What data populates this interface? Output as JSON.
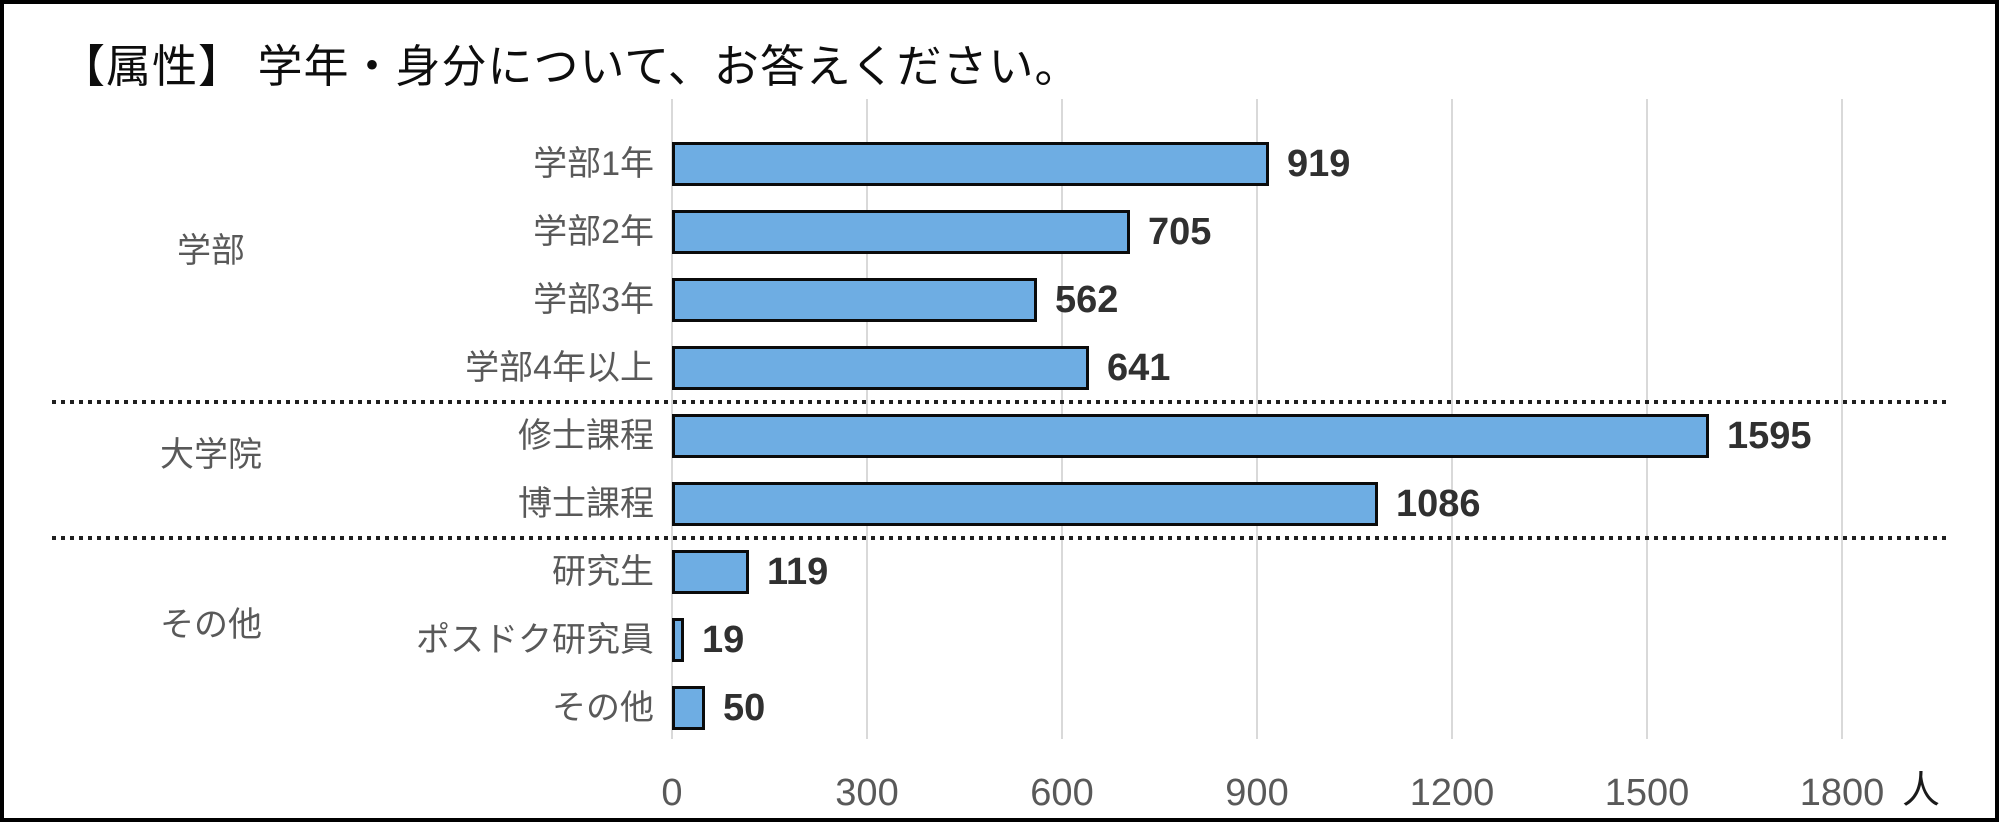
{
  "title": "【属性】 学年・身分について、お答えください。",
  "chart_data": {
    "type": "bar",
    "orientation": "horizontal",
    "title": "【属性】 学年・身分について、お答えください。",
    "groups": [
      {
        "label": "学部",
        "items": [
          {
            "label": "学部1年",
            "value": 919
          },
          {
            "label": "学部2年",
            "value": 705
          },
          {
            "label": "学部3年",
            "value": 562
          },
          {
            "label": "学部4年以上",
            "value": 641
          }
        ]
      },
      {
        "label": "大学院",
        "items": [
          {
            "label": "修士課程",
            "value": 1595
          },
          {
            "label": "博士課程",
            "value": 1086
          }
        ]
      },
      {
        "label": "その他",
        "items": [
          {
            "label": "研究生",
            "value": 119
          },
          {
            "label": "ポスドク研究員",
            "value": 19
          },
          {
            "label": "その他",
            "value": 50
          }
        ]
      }
    ],
    "xticks": [
      0,
      300,
      600,
      900,
      1200,
      1500,
      1800
    ],
    "xlim": [
      0,
      1800
    ],
    "unit": "人",
    "grid": true,
    "legend": false,
    "colors": {
      "bar_fill": "#6EADE3",
      "bar_border": "#0B0B0B",
      "gridline": "#D9D9D9",
      "category_label": "#595959",
      "value_label": "#303030",
      "separator": "#1F1F1F"
    }
  }
}
